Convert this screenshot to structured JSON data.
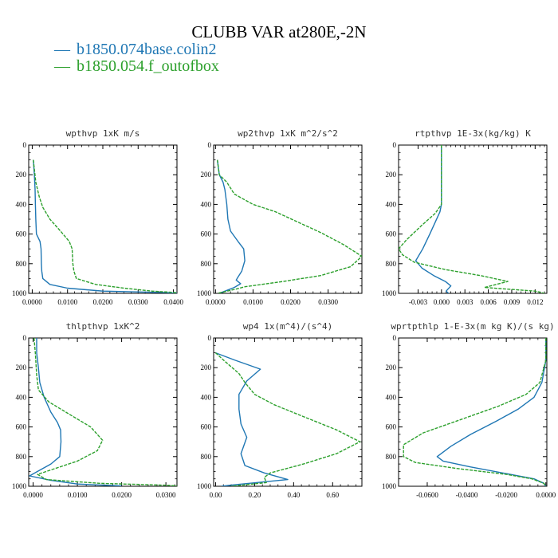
{
  "title": "CLUBB VAR at280E,-2N",
  "legend": [
    {
      "name": "b1850.074base.colin2",
      "color": "#1f77b4"
    },
    {
      "name": "b1850.054.f_outofbox",
      "color": "#2ca02c"
    }
  ],
  "chart_data": [
    {
      "type": "line",
      "title": "wpthvp   1xK m/s",
      "xlim": [
        -0.001,
        0.041
      ],
      "ylim": [
        1000,
        0
      ],
      "xticks": [
        "0.0000",
        "0.0100",
        "0.0200",
        "0.0300",
        "0.0400"
      ],
      "xtick_values": [
        0,
        0.01,
        0.02,
        0.03,
        0.04
      ],
      "yticks": [
        "0",
        "200",
        "400",
        "600",
        "800",
        "1000"
      ],
      "series": [
        {
          "color": "#1f77b4",
          "points": [
            [
              0.0003,
              100
            ],
            [
              0.0006,
              200
            ],
            [
              0.0008,
              300
            ],
            [
              0.0009,
              400
            ],
            [
              0.001,
              500
            ],
            [
              0.0012,
              600
            ],
            [
              0.0022,
              650
            ],
            [
              0.0025,
              700
            ],
            [
              0.0026,
              800
            ],
            [
              0.0027,
              850
            ],
            [
              0.003,
              900
            ],
            [
              0.005,
              940
            ],
            [
              0.01,
              965
            ],
            [
              0.02,
              985
            ],
            [
              0.038,
              995
            ],
            [
              0.041,
              1000
            ]
          ]
        },
        {
          "color": "#2ca02c",
          "points": [
            [
              0.0003,
              100
            ],
            [
              0.001,
              250
            ],
            [
              0.002,
              350
            ],
            [
              0.003,
              420
            ],
            [
              0.005,
              500
            ],
            [
              0.008,
              580
            ],
            [
              0.0105,
              650
            ],
            [
              0.0113,
              700
            ],
            [
              0.0115,
              800
            ],
            [
              0.0118,
              850
            ],
            [
              0.0125,
              900
            ],
            [
              0.018,
              940
            ],
            [
              0.026,
              965
            ],
            [
              0.034,
              985
            ],
            [
              0.041,
              995
            ]
          ]
        }
      ]
    },
    {
      "type": "line",
      "title": "wp2thvp   1xK m^2/s^2",
      "xlim": [
        -0.0005,
        0.039
      ],
      "ylim": [
        1000,
        0
      ],
      "xticks": [
        "0.0000",
        "0.0100",
        "0.0200",
        "0.0300"
      ],
      "xtick_values": [
        0,
        0.01,
        0.02,
        0.03
      ],
      "yticks": [
        "0",
        "200",
        "400",
        "600",
        "800",
        "1000"
      ],
      "series": [
        {
          "color": "#1f77b4",
          "points": [
            [
              0.0005,
              100
            ],
            [
              0.001,
              200
            ],
            [
              0.002,
              250
            ],
            [
              0.0025,
              300
            ],
            [
              0.003,
              400
            ],
            [
              0.0033,
              500
            ],
            [
              0.004,
              580
            ],
            [
              0.006,
              650
            ],
            [
              0.0075,
              700
            ],
            [
              0.0078,
              780
            ],
            [
              0.007,
              850
            ],
            [
              0.006,
              890
            ],
            [
              0.0055,
              910
            ],
            [
              0.0067,
              935
            ],
            [
              0.005,
              960
            ],
            [
              0.003,
              980
            ],
            [
              0.001,
              1000
            ]
          ]
        },
        {
          "color": "#2ca02c",
          "points": [
            [
              0.0005,
              100
            ],
            [
              0.001,
              200
            ],
            [
              0.003,
              250
            ],
            [
              0.005,
              330
            ],
            [
              0.01,
              400
            ],
            [
              0.016,
              450
            ],
            [
              0.022,
              520
            ],
            [
              0.028,
              590
            ],
            [
              0.034,
              670
            ],
            [
              0.039,
              750
            ],
            [
              0.036,
              820
            ],
            [
              0.028,
              880
            ],
            [
              0.018,
              920
            ],
            [
              0.008,
              955
            ],
            [
              0.004,
              980
            ],
            [
              0.0005,
              1000
            ]
          ]
        }
      ]
    },
    {
      "type": "line",
      "title": "rtpthvp   1E-3x(kg/kg) K",
      "xlim": [
        -0.0055,
        0.0135
      ],
      "ylim": [
        1000,
        0
      ],
      "xticks": [
        "-0.003",
        "0.000",
        "0.003",
        "0.006",
        "0.009",
        "0.012"
      ],
      "xtick_values": [
        -0.003,
        0,
        0.003,
        0.006,
        0.009,
        0.012
      ],
      "yticks": [
        "0",
        "200",
        "400",
        "600",
        "800",
        "1000"
      ],
      "series": [
        {
          "color": "#1f77b4",
          "points": [
            [
              0,
              0
            ],
            [
              0,
              100
            ],
            [
              0,
              300
            ],
            [
              0,
              400
            ],
            [
              -0.0002,
              450
            ],
            [
              -0.0008,
              520
            ],
            [
              -0.0015,
              600
            ],
            [
              -0.0024,
              700
            ],
            [
              -0.0033,
              780
            ],
            [
              -0.0025,
              830
            ],
            [
              -0.001,
              880
            ],
            [
              0.0005,
              920
            ],
            [
              0.0012,
              950
            ],
            [
              0.0006,
              985
            ],
            [
              0.0009,
              1000
            ]
          ]
        },
        {
          "color": "#2ca02c",
          "points": [
            [
              0,
              0
            ],
            [
              0,
              100
            ],
            [
              0,
              300
            ],
            [
              0,
              400
            ],
            [
              -0.0008,
              460
            ],
            [
              -0.0025,
              540
            ],
            [
              -0.0045,
              640
            ],
            [
              -0.0055,
              700
            ],
            [
              -0.005,
              740
            ],
            [
              -0.0035,
              790
            ],
            [
              0.0005,
              840
            ],
            [
              0.005,
              880
            ],
            [
              0.0085,
              920
            ],
            [
              0.0055,
              960
            ],
            [
              0.012,
              985
            ],
            [
              0.0132,
              1000
            ]
          ]
        }
      ]
    },
    {
      "type": "line",
      "title": "thlpthvp   1xK^2",
      "xlim": [
        -0.001,
        0.0325
      ],
      "ylim": [
        1000,
        0
      ],
      "xticks": [
        "0.0000",
        "0.0100",
        "0.0200",
        "0.0300"
      ],
      "xtick_values": [
        0,
        0.01,
        0.02,
        0.03
      ],
      "yticks": [
        "0",
        "200",
        "400",
        "600",
        "800",
        "1000"
      ],
      "series": [
        {
          "color": "#1f77b4",
          "points": [
            [
              0.0008,
              0
            ],
            [
              0.0008,
              100
            ],
            [
              0.0012,
              200
            ],
            [
              0.0015,
              300
            ],
            [
              0.0025,
              400
            ],
            [
              0.004,
              500
            ],
            [
              0.0055,
              570
            ],
            [
              0.0062,
              620
            ],
            [
              0.0063,
              700
            ],
            [
              0.006,
              800
            ],
            [
              0.004,
              850
            ],
            [
              0.001,
              900
            ],
            [
              -0.0008,
              930
            ],
            [
              0.004,
              960
            ],
            [
              0.01,
              985
            ],
            [
              0.02,
              998
            ]
          ]
        },
        {
          "color": "#2ca02c",
          "points": [
            [
              0.0002,
              0
            ],
            [
              0.0005,
              100
            ],
            [
              0.0008,
              250
            ],
            [
              0.0012,
              350
            ],
            [
              0.0035,
              430
            ],
            [
              0.0085,
              520
            ],
            [
              0.013,
              600
            ],
            [
              0.0157,
              690
            ],
            [
              0.0145,
              760
            ],
            [
              0.01,
              830
            ],
            [
              0.005,
              880
            ],
            [
              0.001,
              920
            ],
            [
              0.003,
              955
            ],
            [
              0.015,
              980
            ],
            [
              0.03,
              993
            ],
            [
              0.0325,
              998
            ]
          ]
        }
      ]
    },
    {
      "type": "line",
      "title": "wp4   1x(m^4)/(s^4)",
      "xlim": [
        -0.01,
        0.75
      ],
      "ylim": [
        1000,
        0
      ],
      "xticks": [
        "0.00",
        "0.20",
        "0.40",
        "0.60"
      ],
      "xtick_values": [
        0,
        0.2,
        0.4,
        0.6
      ],
      "yticks": [
        "0",
        "200",
        "400",
        "600",
        "800",
        "1000"
      ],
      "series": [
        {
          "color": "#1f77b4",
          "points": [
            [
              0,
              100
            ],
            [
              0.1,
              150
            ],
            [
              0.23,
              210
            ],
            [
              0.16,
              290
            ],
            [
              0.12,
              380
            ],
            [
              0.12,
              480
            ],
            [
              0.13,
              580
            ],
            [
              0.16,
              670
            ],
            [
              0.13,
              780
            ],
            [
              0.15,
              860
            ],
            [
              0.25,
              910
            ],
            [
              0.37,
              955
            ],
            [
              0.1,
              990
            ],
            [
              0.03,
              1000
            ]
          ]
        },
        {
          "color": "#2ca02c",
          "points": [
            [
              0,
              100
            ],
            [
              0.05,
              160
            ],
            [
              0.12,
              240
            ],
            [
              0.15,
              300
            ],
            [
              0.2,
              380
            ],
            [
              0.3,
              450
            ],
            [
              0.45,
              530
            ],
            [
              0.62,
              620
            ],
            [
              0.74,
              700
            ],
            [
              0.62,
              780
            ],
            [
              0.45,
              850
            ],
            [
              0.28,
              910
            ],
            [
              0.25,
              940
            ],
            [
              0.26,
              975
            ],
            [
              0.08,
              1000
            ]
          ]
        }
      ]
    },
    {
      "type": "line",
      "title": "wprtpthlp   1-E-3x(m kg K)/(s kg)",
      "xlim": [
        -0.0745,
        0.0005
      ],
      "ylim": [
        1000,
        0
      ],
      "xticks": [
        "-0.0600",
        "-0.0400",
        "-0.0200",
        "0.0000"
      ],
      "xtick_values": [
        -0.06,
        -0.04,
        -0.02,
        0
      ],
      "yticks": [
        "0",
        "200",
        "400",
        "600",
        "800",
        "1000"
      ],
      "series": [
        {
          "color": "#1f77b4",
          "points": [
            [
              0,
              0
            ],
            [
              0,
              150
            ],
            [
              -0.002,
              300
            ],
            [
              -0.006,
              400
            ],
            [
              -0.014,
              480
            ],
            [
              -0.025,
              560
            ],
            [
              -0.038,
              650
            ],
            [
              -0.048,
              730
            ],
            [
              -0.055,
              800
            ],
            [
              -0.052,
              830
            ],
            [
              -0.038,
              870
            ],
            [
              -0.018,
              920
            ],
            [
              -0.006,
              950
            ],
            [
              -0.001,
              980
            ],
            [
              0,
              1000
            ]
          ]
        },
        {
          "color": "#2ca02c",
          "points": [
            [
              0,
              0
            ],
            [
              0,
              150
            ],
            [
              -0.003,
              300
            ],
            [
              -0.01,
              380
            ],
            [
              -0.024,
              460
            ],
            [
              -0.043,
              550
            ],
            [
              -0.062,
              640
            ],
            [
              -0.072,
              720
            ],
            [
              -0.072,
              800
            ],
            [
              -0.066,
              840
            ],
            [
              -0.045,
              880
            ],
            [
              -0.02,
              920
            ],
            [
              -0.007,
              950
            ],
            [
              -0.001,
              980
            ],
            [
              0,
              1000
            ]
          ]
        }
      ]
    }
  ]
}
